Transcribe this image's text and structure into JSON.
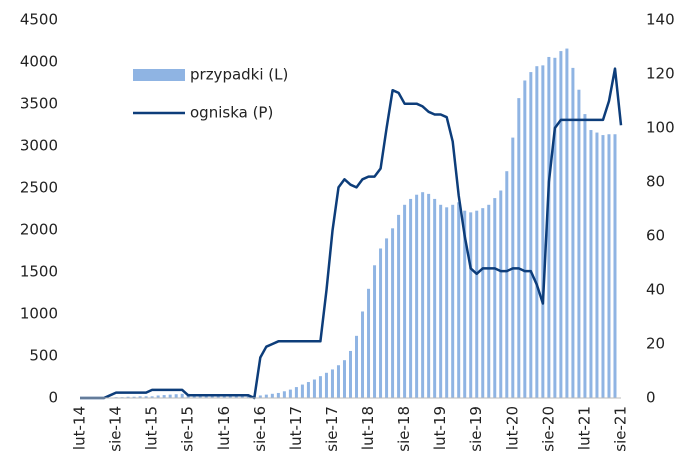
{
  "chart_data": {
    "type": "bar-line",
    "categories": [
      "lut-14",
      null,
      null,
      null,
      null,
      null,
      "sie-14",
      null,
      null,
      null,
      null,
      null,
      "lut-15",
      null,
      null,
      null,
      null,
      null,
      "sie-15",
      null,
      null,
      null,
      null,
      null,
      "lut-16",
      null,
      null,
      null,
      null,
      null,
      "sie-16",
      null,
      null,
      null,
      null,
      null,
      "lut-17",
      null,
      null,
      null,
      null,
      null,
      "sie-17",
      null,
      null,
      null,
      null,
      null,
      "lut-18",
      null,
      null,
      null,
      null,
      null,
      "sie-18",
      null,
      null,
      null,
      null,
      null,
      "lut-19",
      null,
      null,
      null,
      null,
      null,
      "sie-19",
      null,
      null,
      null,
      null,
      null,
      "lut-20",
      null,
      null,
      null,
      null,
      null,
      "sie-20",
      null,
      null,
      null,
      null,
      null,
      "lut-21",
      null,
      null,
      null,
      null,
      null,
      "sie-21"
    ],
    "series": [
      {
        "name": "przypadki (L)",
        "type": "bar",
        "color": "#8fb4e3",
        "axis": "y",
        "values": [
          0,
          0,
          0,
          0,
          0,
          0,
          10,
          10,
          15,
          15,
          20,
          20,
          20,
          30,
          35,
          40,
          45,
          50,
          50,
          40,
          35,
          30,
          30,
          25,
          25,
          25,
          25,
          25,
          30,
          30,
          30,
          40,
          50,
          60,
          80,
          100,
          130,
          160,
          190,
          220,
          260,
          300,
          340,
          390,
          450,
          560,
          740,
          1030,
          1300,
          1580,
          1780,
          1900,
          2020,
          2180,
          2300,
          2370,
          2420,
          2450,
          2430,
          2370,
          2300,
          2270,
          2300,
          2330,
          2230,
          2210,
          2230,
          2260,
          2300,
          2380,
          2470,
          2700,
          3100,
          3570,
          3780,
          3880,
          3950,
          3960,
          4060,
          4050,
          4130,
          4160,
          3930,
          3670,
          3380,
          3190,
          3160,
          3130,
          3140,
          3140,
          null
        ]
      },
      {
        "name": "ogniska (P)",
        "type": "line",
        "color": "#0d3d7a",
        "axis": "y2",
        "values": [
          0,
          0,
          0,
          0,
          0,
          1,
          2,
          2,
          2,
          2,
          2,
          2,
          3,
          3,
          3,
          3,
          3,
          3,
          1,
          1,
          1,
          1,
          1,
          1,
          1,
          1,
          1,
          1,
          1,
          0,
          15,
          19,
          20,
          21,
          21,
          21,
          21,
          21,
          21,
          21,
          21,
          40,
          62,
          78,
          81,
          79,
          78,
          81,
          82,
          82,
          85,
          100,
          114,
          113,
          109,
          109,
          109,
          108,
          106,
          105,
          105,
          104,
          95,
          75,
          60,
          48,
          46,
          48,
          48,
          48,
          47,
          47,
          48,
          48,
          47,
          47,
          42,
          35,
          80,
          100,
          103,
          103,
          103,
          103,
          103,
          103,
          103,
          103,
          110,
          122,
          101
        ]
      }
    ],
    "ylim": [
      0,
      4500
    ],
    "yticks": [
      0,
      500,
      1000,
      1500,
      2000,
      2500,
      3000,
      3500,
      4000,
      4500
    ],
    "y2lim": [
      0,
      140
    ],
    "y2ticks": [
      0,
      20,
      40,
      60,
      80,
      100,
      120,
      140
    ]
  }
}
